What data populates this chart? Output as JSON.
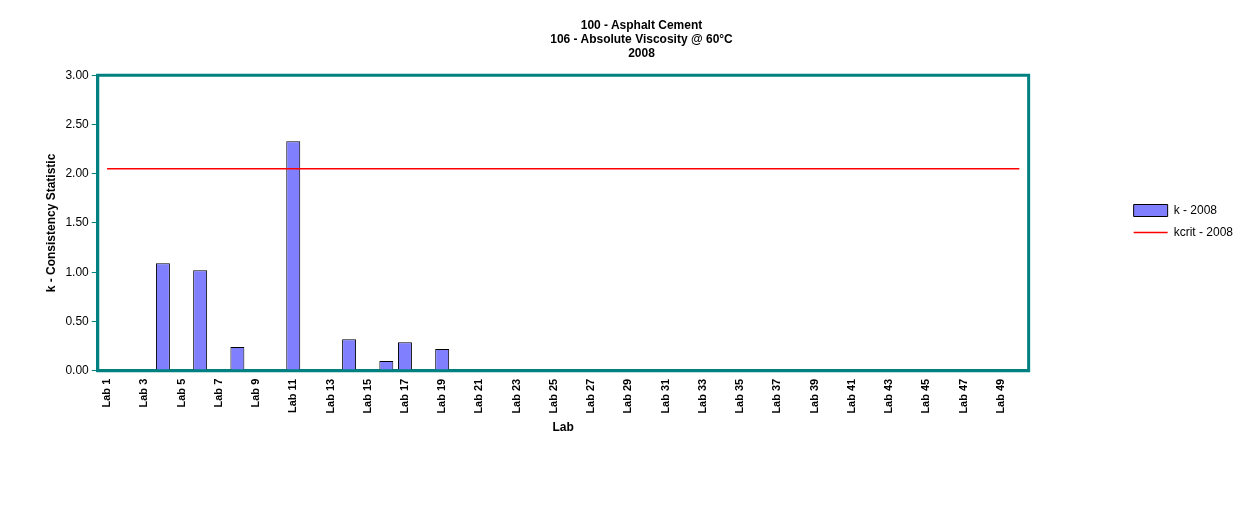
{
  "chart_data": {
    "type": "bar",
    "title": "100 - Asphalt Cement\n106 - Absolute Viscosity @ 60°C\n2008",
    "xlabel": "Lab",
    "ylabel": "k - Consistency Statistic",
    "categories": [
      "Lab 1",
      null,
      "Lab 3",
      null,
      "Lab 5",
      null,
      "Lab 7",
      null,
      "Lab 9",
      null,
      "Lab 11",
      null,
      "Lab 13",
      null,
      "Lab 15",
      null,
      "Lab 17",
      null,
      "Lab 19",
      null,
      "Lab 21",
      null,
      "Lab 23",
      null,
      "Lab 25",
      null,
      "Lab 27",
      null,
      "Lab 29",
      null,
      "Lab 31",
      null,
      "Lab 33",
      null,
      "Lab 35",
      null,
      "Lab 37",
      null,
      "Lab 39",
      null,
      "Lab 41",
      null,
      "Lab 43",
      null,
      "Lab 45",
      null,
      "Lab 47",
      null,
      "Lab 49",
      null
    ],
    "series": [
      {
        "name": "k - 2008",
        "color": "#8080ff",
        "values": [
          null,
          null,
          null,
          1.09,
          null,
          1.02,
          null,
          0.24,
          null,
          null,
          2.33,
          null,
          null,
          0.32,
          null,
          0.1,
          0.29,
          null,
          0.22,
          null,
          null,
          null,
          null,
          null,
          null,
          null,
          null,
          null,
          null,
          null,
          null,
          null,
          null,
          null,
          null,
          null,
          null,
          null,
          null,
          null,
          null,
          null,
          null,
          null,
          null,
          null,
          null,
          null,
          null,
          null
        ]
      },
      {
        "name": "kcrit - 2008",
        "type": "line",
        "color": "#ff0000",
        "values": [
          2.05,
          2.05,
          2.05,
          2.05,
          2.05,
          2.05,
          2.05,
          2.05,
          2.05,
          2.05,
          2.05,
          2.05,
          2.05,
          2.05,
          2.05,
          2.05,
          2.05,
          2.05,
          2.05,
          2.05,
          2.05,
          2.05,
          2.05,
          2.05,
          2.05,
          2.05,
          2.05,
          2.05,
          2.05,
          2.05,
          2.05,
          2.05,
          2.05,
          2.05,
          2.05,
          2.05,
          2.05,
          2.05,
          2.05,
          2.05,
          2.05,
          2.05,
          2.05,
          2.05,
          2.05,
          2.05,
          2.05,
          2.05,
          2.05,
          2.05
        ]
      }
    ],
    "ylim": [
      0,
      3
    ],
    "yticks": [
      {
        "value": 0,
        "label": "0.00"
      },
      {
        "value": 0.5,
        "label": "0.50"
      },
      {
        "value": 1,
        "label": "1.00"
      },
      {
        "value": 1.5,
        "label": "1.50"
      },
      {
        "value": 2,
        "label": "2.00"
      },
      {
        "value": 2.5,
        "label": "2.50"
      },
      {
        "value": 3,
        "label": "3.00"
      }
    ],
    "grid": false,
    "legend": "right",
    "marker": "none",
    "line_style": "solid"
  }
}
